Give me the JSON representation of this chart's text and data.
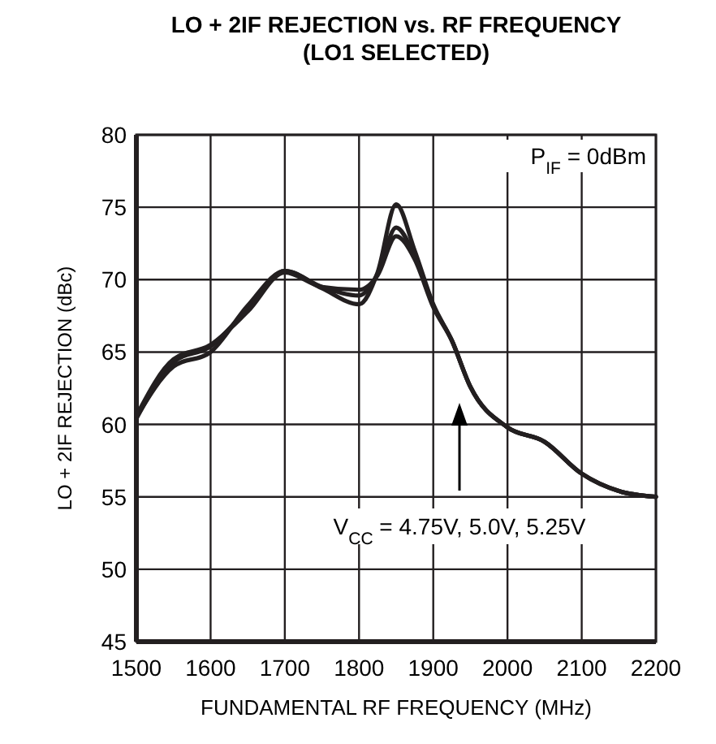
{
  "chart_data": {
    "type": "line",
    "title": "LO + 2IF REJECTION vs. RF FREQUENCY",
    "subtitle": "(LO1 SELECTED)",
    "xlabel": "FUNDAMENTAL RF FREQUENCY (MHz)",
    "ylabel": "LO + 2IF REJECTION (dBc)",
    "x": [
      1500,
      1550,
      1600,
      1650,
      1700,
      1750,
      1800,
      1825,
      1850,
      1875,
      1900,
      1925,
      1950,
      2000,
      2050,
      2100,
      2150,
      2200
    ],
    "series": [
      {
        "color": "#231f20",
        "values": [
          60.5,
          64.0,
          65.0,
          68.2,
          70.6,
          69.4,
          68.3,
          70.5,
          75.2,
          72.0,
          68.3,
          65.8,
          62.6,
          59.8,
          58.8,
          56.6,
          55.4,
          55.0
        ]
      },
      {
        "color": "#231f20",
        "values": [
          60.4,
          64.3,
          65.4,
          68.0,
          70.6,
          69.5,
          68.9,
          70.4,
          73.6,
          71.6,
          68.2,
          65.8,
          62.6,
          59.8,
          58.8,
          56.6,
          55.4,
          55.0
        ]
      },
      {
        "color": "#231f20",
        "values": [
          60.6,
          64.5,
          65.5,
          67.8,
          70.5,
          69.5,
          69.3,
          70.3,
          73.0,
          71.4,
          68.1,
          65.8,
          62.6,
          59.8,
          58.8,
          56.6,
          55.4,
          55.0
        ]
      }
    ],
    "xlim": [
      1500,
      2200
    ],
    "xticks": [
      1500,
      1600,
      1700,
      1800,
      1900,
      2000,
      2100,
      2200
    ],
    "ylim": [
      45,
      80
    ],
    "yticks": [
      45,
      50,
      55,
      60,
      65,
      70,
      75,
      80
    ],
    "grid": true,
    "marker": "none",
    "line_style": "solid",
    "annotations": [
      "P$_{IF}$ = 0dBm",
      "V$_{CC}$ = 4.75V, 5.0V, 5.25V"
    ]
  }
}
